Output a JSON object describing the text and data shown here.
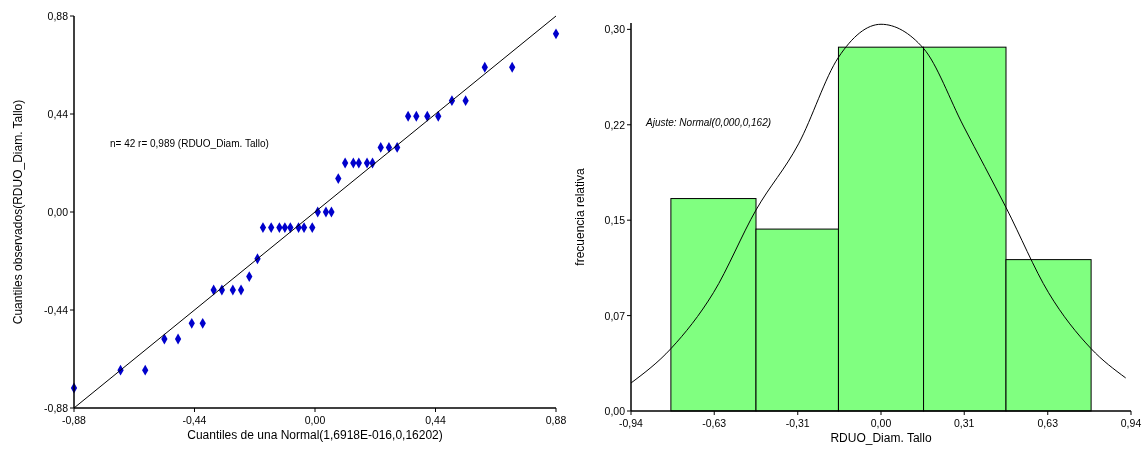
{
  "chart_data": [
    {
      "type": "scatter",
      "xlabel": "Cuantiles de una Normal(1,6918E-016,0,16202)",
      "ylabel": "Cuantiles observados(RDUO_Diam. Tallo)",
      "annotations": [
        "n= 42 r= 0,989 (RDUO_Diam. Tallo)"
      ],
      "xlim": [
        -0.88,
        0.88
      ],
      "ylim": [
        -0.88,
        0.88
      ],
      "xticks": [
        {
          "value": -0.88,
          "label": "-0,88"
        },
        {
          "value": -0.44,
          "label": "-0,44"
        },
        {
          "value": 0,
          "label": "0,00"
        },
        {
          "value": 0.44,
          "label": "0,44"
        },
        {
          "value": 0.88,
          "label": "0,88"
        }
      ],
      "yticks": [
        {
          "value": -0.88,
          "label": "-0,88"
        },
        {
          "value": -0.44,
          "label": "-0,44"
        },
        {
          "value": 0,
          "label": "0,00"
        },
        {
          "value": 0.44,
          "label": "0,44"
        },
        {
          "value": 0.88,
          "label": "0,88"
        }
      ],
      "series": [
        {
          "type": "scatter",
          "marker": "diamond",
          "color": "#0000cc",
          "x": [
            -0.88,
            -0.71,
            -0.62,
            -0.55,
            -0.5,
            -0.45,
            -0.41,
            -0.37,
            -0.34,
            -0.3,
            -0.27,
            -0.24,
            -0.21,
            -0.19,
            -0.16,
            -0.13,
            -0.11,
            -0.09,
            -0.06,
            -0.04,
            -0.01,
            0.01,
            0.04,
            0.06,
            0.085,
            0.11,
            0.14,
            0.16,
            0.19,
            0.21,
            0.24,
            0.27,
            0.3,
            0.34,
            0.37,
            0.41,
            0.45,
            0.5,
            0.55,
            0.62,
            0.72,
            0.88
          ],
          "values": [
            -0.79,
            -0.71,
            -0.71,
            -0.57,
            -0.57,
            -0.5,
            -0.5,
            -0.35,
            -0.35,
            -0.35,
            -0.35,
            -0.29,
            -0.21,
            -0.07,
            -0.07,
            -0.07,
            -0.07,
            -0.07,
            -0.07,
            -0.07,
            -0.07,
            0,
            0,
            0,
            0.15,
            0.22,
            0.22,
            0.22,
            0.22,
            0.22,
            0.29,
            0.29,
            0.29,
            0.43,
            0.43,
            0.43,
            0.43,
            0.5,
            0.5,
            0.65,
            0.65,
            0.8
          ]
        },
        {
          "type": "line",
          "color": "#000000",
          "x": [
            -0.88,
            0.88
          ],
          "values": [
            -0.88,
            0.88
          ]
        }
      ]
    },
    {
      "type": "histogram",
      "xlabel": "RDUO_Diam. Tallo",
      "ylabel": "frecuencia relativa",
      "annotations": [
        "Ajuste: Normal(0,000,0,162)"
      ],
      "bins": [
        -0.79,
        -0.47,
        -0.16,
        0.16,
        0.47,
        0.79
      ],
      "values": [
        0.167,
        0.143,
        0.286,
        0.286,
        0.119
      ],
      "color": "#80ff80",
      "xlim": [
        -0.94,
        0.94
      ],
      "ylim": [
        0,
        0.305
      ],
      "xticks": [
        {
          "value": -0.94,
          "label": "-0,94"
        },
        {
          "value": -0.627,
          "label": "-0,63"
        },
        {
          "value": -0.313,
          "label": "-0,31"
        },
        {
          "value": 0,
          "label": "0,00"
        },
        {
          "value": 0.313,
          "label": "0,31"
        },
        {
          "value": 0.627,
          "label": "0,63"
        },
        {
          "value": 0.94,
          "label": "0,94"
        }
      ],
      "yticks": [
        {
          "value": 0,
          "label": "0,00"
        },
        {
          "value": 0.075,
          "label": "0,07"
        },
        {
          "value": 0.15,
          "label": "0,15"
        },
        {
          "value": 0.225,
          "label": "0,22"
        },
        {
          "value": 0.3,
          "label": "0,30"
        }
      ],
      "series": [
        {
          "type": "line",
          "color": "#000000",
          "x": [
            -0.94,
            -0.79,
            -0.63,
            -0.47,
            -0.31,
            -0.16,
            0,
            0.16,
            0.31,
            0.47,
            0.63,
            0.79,
            0.92
          ],
          "values": [
            0.022,
            0.049,
            0.093,
            0.158,
            0.21,
            0.278,
            0.304,
            0.285,
            0.224,
            0.16,
            0.093,
            0.049,
            0.026
          ]
        }
      ]
    }
  ]
}
